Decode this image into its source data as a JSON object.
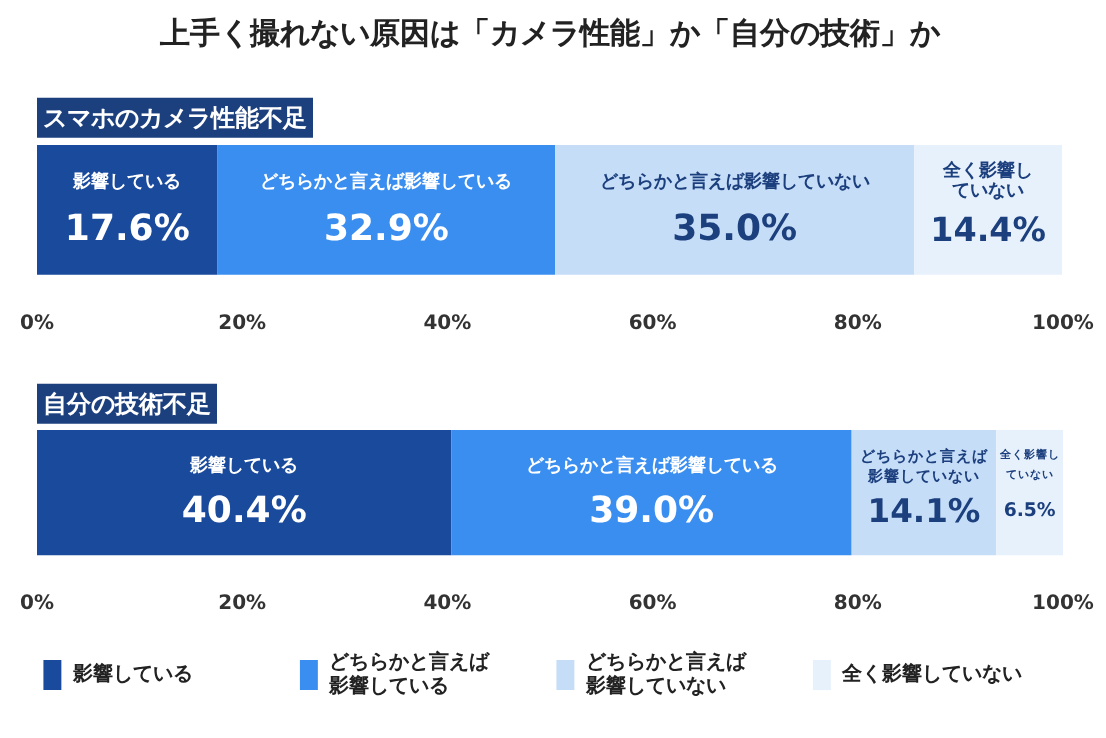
{
  "chart_data": {
    "type": "bar",
    "orientation": "horizontal",
    "stacked": true,
    "title": "上手く撮れない原因は「カメラ性能」か「自分の技術」か",
    "categories": [
      "スマホのカメラ性能不足",
      "自分の技術不足"
    ],
    "series": [
      {
        "name": "影響している",
        "color": "#1a4a9c",
        "values": [
          17.6,
          40.4
        ],
        "value_labels": [
          "17.6%",
          "40.4%"
        ]
      },
      {
        "name": "どちらかと言えば影響している",
        "color": "#3a8ef0",
        "values": [
          32.9,
          39.0
        ],
        "value_labels": [
          "32.9%",
          "39.0%"
        ]
      },
      {
        "name": "どちらかと言えば影響していない",
        "color": "#c6ddf8",
        "values": [
          35.0,
          14.1
        ],
        "value_labels": [
          "35.0%",
          "14.1%"
        ]
      },
      {
        "name": "全く影響していない",
        "color": "#e7f1fc",
        "values": [
          14.4,
          6.5
        ],
        "value_labels": [
          "14.4%",
          "6.5%"
        ]
      }
    ],
    "xlim": [
      0,
      100
    ],
    "xticks": [
      {
        "value": 0,
        "label": "0%"
      },
      {
        "value": 20,
        "label": "20%"
      },
      {
        "value": 40,
        "label": "40%"
      },
      {
        "value": 60,
        "label": "60%"
      },
      {
        "value": 80,
        "label": "80%"
      },
      {
        "value": 100,
        "label": "100%"
      }
    ],
    "grid": false,
    "legend": "bottom"
  }
}
